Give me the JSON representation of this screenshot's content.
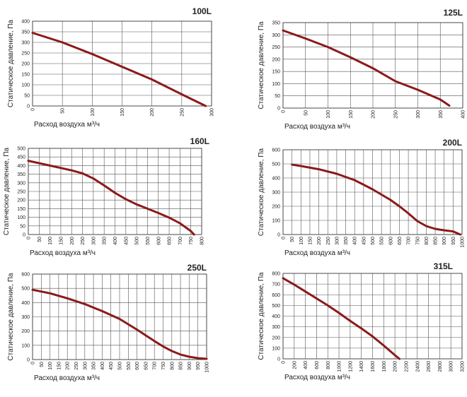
{
  "chart_data": [
    {
      "type": "line",
      "title": "100L",
      "xlabel": "Расход воздуха м³/ч",
      "ylabel": "Статическое давление, Па",
      "xlim": [
        0,
        300
      ],
      "ylim": [
        0,
        400
      ],
      "xticks": [
        0,
        50,
        100,
        150,
        200,
        250,
        300
      ],
      "yticks": [
        0,
        50,
        100,
        150,
        200,
        250,
        300,
        350,
        400
      ],
      "grid": true,
      "x": [
        0,
        50,
        100,
        150,
        200,
        250,
        290
      ],
      "y": [
        345,
        300,
        245,
        185,
        125,
        55,
        0
      ]
    },
    {
      "type": "line",
      "title": "125L",
      "xlabel": "Расход воздуха м³/ч",
      "ylabel": "Статическое давление, Па",
      "xlim": [
        0,
        400
      ],
      "ylim": [
        0,
        350
      ],
      "xticks": [
        0,
        50,
        100,
        150,
        200,
        250,
        300,
        350,
        400
      ],
      "yticks": [
        0,
        50,
        100,
        150,
        200,
        250,
        300,
        350
      ],
      "grid": true,
      "x": [
        0,
        50,
        100,
        150,
        200,
        250,
        300,
        350,
        370
      ],
      "y": [
        318,
        285,
        250,
        208,
        163,
        110,
        75,
        35,
        10
      ]
    },
    {
      "type": "line",
      "title": "160L",
      "xlabel": "Расход воздуха м³/ч",
      "ylabel": "Статическое давление, Па",
      "xlim": [
        0,
        800
      ],
      "ylim": [
        0,
        500
      ],
      "xticks": [
        0,
        50,
        100,
        150,
        200,
        250,
        300,
        350,
        400,
        450,
        500,
        550,
        600,
        650,
        700,
        750,
        800
      ],
      "yticks": [
        0,
        50,
        100,
        150,
        200,
        250,
        300,
        350,
        400,
        450,
        500
      ],
      "grid": true,
      "x": [
        0,
        100,
        200,
        250,
        300,
        350,
        400,
        450,
        500,
        550,
        600,
        650,
        700,
        750,
        765
      ],
      "y": [
        428,
        400,
        372,
        355,
        325,
        285,
        242,
        205,
        175,
        150,
        125,
        98,
        65,
        20,
        0
      ]
    },
    {
      "type": "line",
      "title": "200L",
      "xlabel": "Расход воздуха м³/ч",
      "ylabel": "Статическое давление, Па",
      "xlim": [
        0,
        1000
      ],
      "ylim": [
        0,
        600
      ],
      "xticks": [
        0,
        50,
        100,
        150,
        200,
        250,
        300,
        350,
        400,
        450,
        500,
        550,
        600,
        650,
        700,
        750,
        800,
        850,
        900,
        950,
        1000
      ],
      "yticks": [
        0,
        100,
        200,
        300,
        400,
        500,
        600
      ],
      "grid": true,
      "x": [
        50,
        100,
        200,
        300,
        400,
        500,
        600,
        650,
        700,
        750,
        800,
        850,
        900,
        950,
        990
      ],
      "y": [
        495,
        485,
        462,
        430,
        385,
        320,
        245,
        200,
        150,
        95,
        60,
        40,
        30,
        22,
        0
      ]
    },
    {
      "type": "line",
      "title": "250L",
      "xlabel": "Расход воздуха м³/ч",
      "ylabel": "Статическое давление, Па",
      "xlim": [
        0,
        1000
      ],
      "ylim": [
        0,
        600
      ],
      "xticks": [
        0,
        50,
        100,
        150,
        200,
        250,
        300,
        350,
        400,
        450,
        500,
        550,
        600,
        650,
        700,
        750,
        800,
        850,
        900,
        950,
        1000
      ],
      "yticks": [
        0,
        100,
        200,
        300,
        400,
        500,
        600
      ],
      "grid": true,
      "x": [
        0,
        100,
        200,
        300,
        400,
        500,
        600,
        650,
        700,
        750,
        800,
        850,
        900,
        950,
        1000
      ],
      "y": [
        490,
        465,
        430,
        390,
        340,
        285,
        210,
        170,
        130,
        92,
        60,
        35,
        20,
        10,
        5
      ]
    },
    {
      "type": "line",
      "title": "315L",
      "xlabel": "Расход воздуха м³/ч",
      "ylabel": "Статическое давление, Па",
      "xlim": [
        0,
        3200
      ],
      "ylim": [
        0,
        800
      ],
      "xticks": [
        0,
        200,
        400,
        600,
        800,
        1000,
        1200,
        1400,
        1600,
        1800,
        2000,
        2200,
        2400,
        2600,
        2800,
        3000,
        3200
      ],
      "yticks": [
        0,
        100,
        200,
        300,
        400,
        500,
        600,
        700,
        800
      ],
      "grid": true,
      "x": [
        0,
        200,
        400,
        600,
        800,
        1000,
        1200,
        1400,
        1600,
        1800,
        2000,
        2080
      ],
      "y": [
        755,
        695,
        630,
        565,
        500,
        430,
        355,
        285,
        210,
        125,
        35,
        0
      ]
    }
  ]
}
